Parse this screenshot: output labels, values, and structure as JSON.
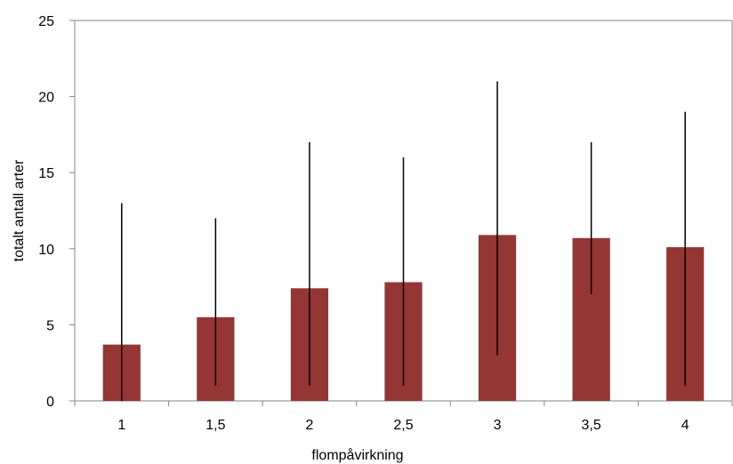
{
  "chart_data": {
    "type": "bar",
    "title": "",
    "xlabel": "flompåvirkning",
    "ylabel": "totalt antall arter",
    "categories": [
      "1",
      "1,5",
      "2",
      "2,5",
      "3",
      "3,5",
      "4"
    ],
    "values": [
      3.7,
      5.5,
      7.4,
      7.8,
      10.9,
      10.7,
      10.1
    ],
    "error_min": [
      0,
      1,
      1,
      1,
      3,
      7,
      1
    ],
    "error_max": [
      13,
      12,
      17,
      16,
      21,
      17,
      19
    ],
    "ylim": [
      0,
      25
    ],
    "yticks": [
      "0",
      "5",
      "10",
      "15",
      "20",
      "25"
    ],
    "grid": false,
    "legend": "none",
    "bar_color": "#943634",
    "error_color": "#000000"
  }
}
